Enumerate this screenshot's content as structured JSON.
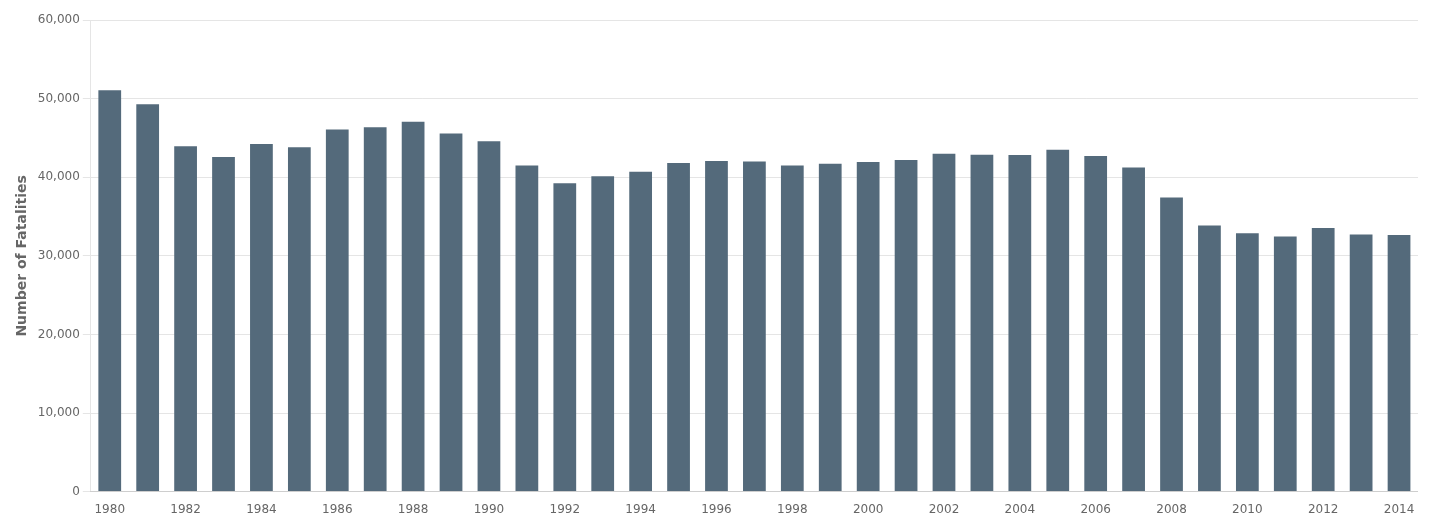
{
  "chart_data": {
    "type": "bar",
    "ylabel": "Number of Fatalities",
    "categories": [
      "1980",
      null,
      "1982",
      null,
      "1984",
      null,
      "1986",
      null,
      "1988",
      null,
      "1990",
      null,
      "1992",
      null,
      "1994",
      null,
      "1996",
      null,
      "1998",
      null,
      "2000",
      null,
      "2002",
      null,
      "2004",
      null,
      "2006",
      null,
      "2008",
      null,
      "2010",
      null,
      "2012",
      null,
      "2014"
    ],
    "values": [
      51091,
      49301,
      43945,
      42589,
      44257,
      43825,
      46087,
      46390,
      47087,
      45582,
      44599,
      41508,
      39250,
      40150,
      40716,
      41817,
      42065,
      42013,
      41501,
      41717,
      41945,
      42196,
      43005,
      42884,
      42836,
      43510,
      42708,
      41259,
      37423,
      33883,
      32885,
      32479,
      33561,
      32719,
      32675
    ],
    "color": "#546a7b",
    "ylim": [
      0,
      60000
    ],
    "yticks": [
      0,
      {
        "value": 10000,
        "label": "10,000"
      },
      {
        "value": 20000,
        "label": "20,000"
      },
      {
        "value": 30000,
        "label": "30,000"
      },
      {
        "value": 40000,
        "label": "40,000"
      },
      {
        "value": 50000,
        "label": "50,000"
      },
      {
        "value": 60000,
        "label": "60,000"
      }
    ],
    "grid": true
  }
}
